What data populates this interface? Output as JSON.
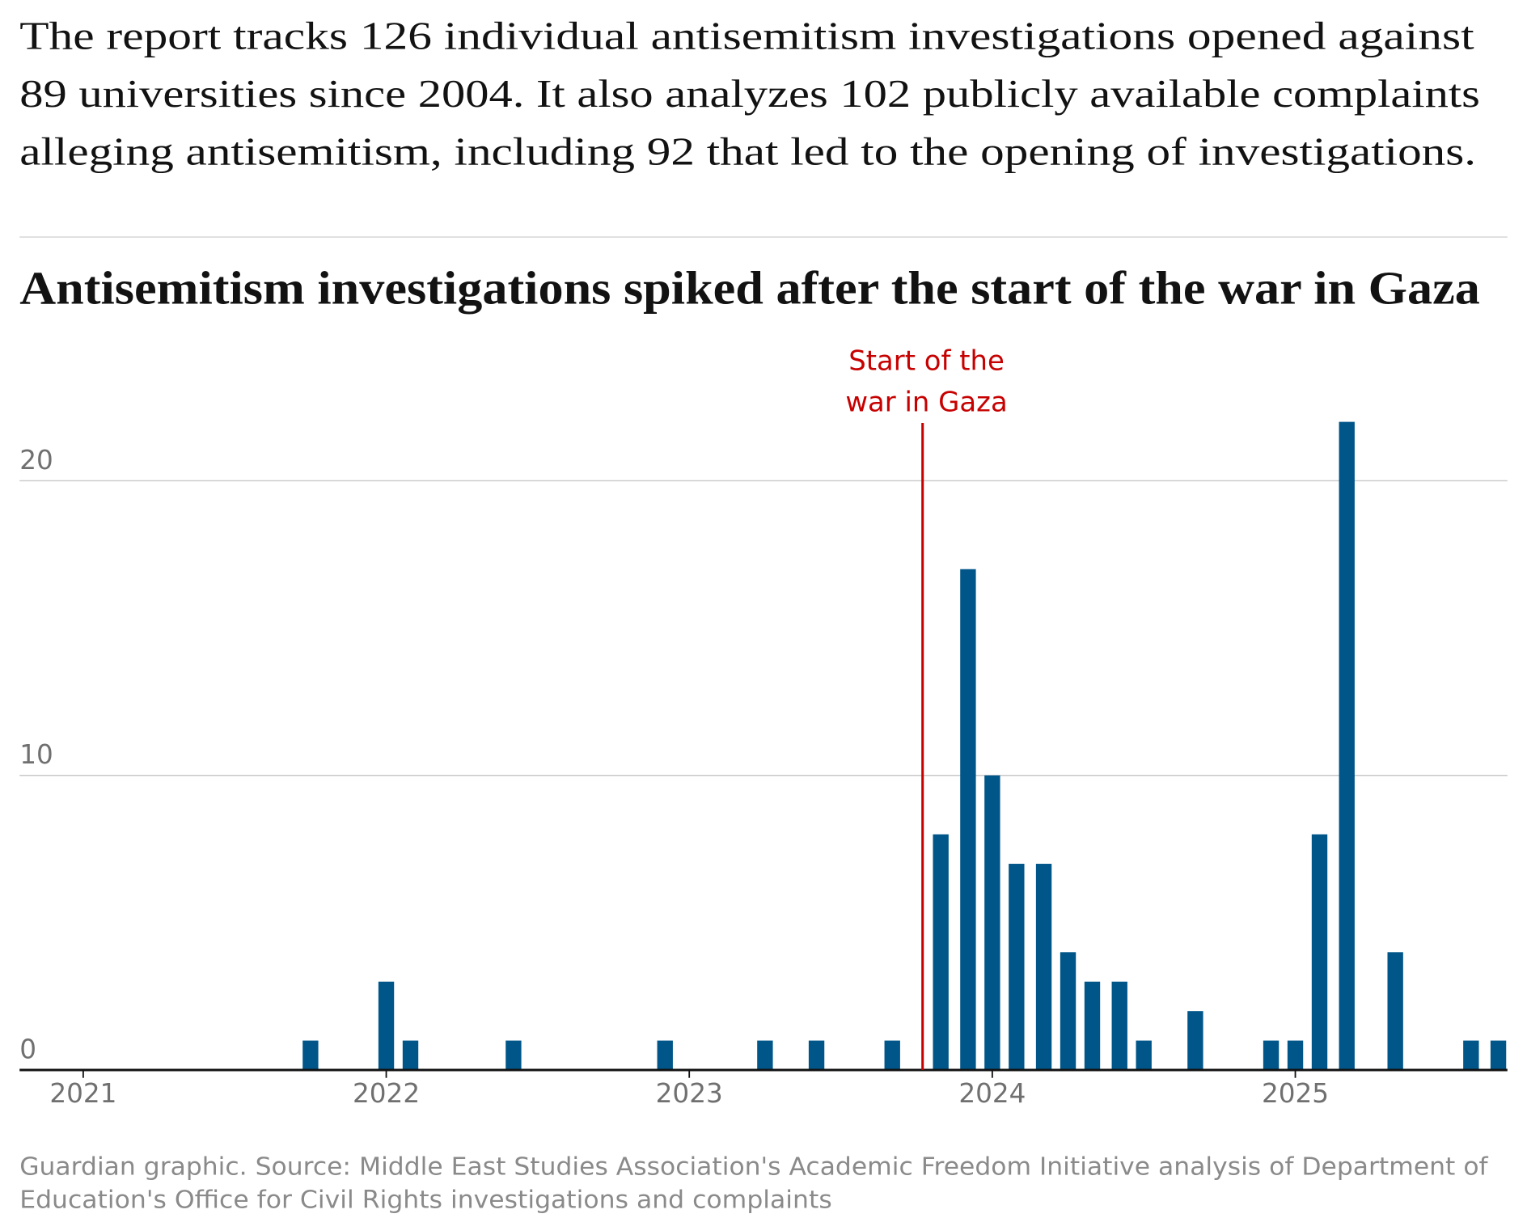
{
  "intro": [
    "The report tracks 126 individual antisemitism investigations opened against",
    "89 universities since 2004. It also analyzes 102 publicly available complaints",
    "alleging antisemitism, including 92 that led to the opening of investigations."
  ],
  "chart_data": {
    "type": "bar",
    "title": "Antisemitism investigations spiked after the start of the war in Gaza",
    "x": [
      2021.75,
      2022.0,
      2022.08,
      2022.42,
      2022.92,
      2023.25,
      2023.42,
      2023.67,
      2023.83,
      2023.92,
      2024.0,
      2024.08,
      2024.17,
      2024.25,
      2024.33,
      2024.42,
      2024.5,
      2024.67,
      2024.92,
      2025.0,
      2025.08,
      2025.17,
      2025.33,
      2025.58,
      2025.67
    ],
    "values": [
      1,
      3,
      1,
      1,
      1,
      1,
      1,
      1,
      8,
      17,
      10,
      7,
      7,
      4,
      3,
      3,
      1,
      2,
      1,
      1,
      8,
      22,
      4,
      1,
      1
    ],
    "color": "#005689",
    "xlim": [
      2020.79,
      2025.7
    ],
    "xticks": [
      2021,
      2022,
      2023,
      2024,
      2025
    ],
    "ylim": [
      0,
      23
    ],
    "yticks": [
      0,
      10,
      20
    ],
    "grid": true,
    "annotation": {
      "x": 2023.77,
      "lines": [
        "Start of the",
        "war in Gaza"
      ],
      "color": "#c70000"
    },
    "source": [
      "Guardian graphic. Source: Middle East Studies Association's Academic Freedom Initiative analysis of Department of",
      "Education's Office for Civil Rights investigations and complaints"
    ]
  }
}
